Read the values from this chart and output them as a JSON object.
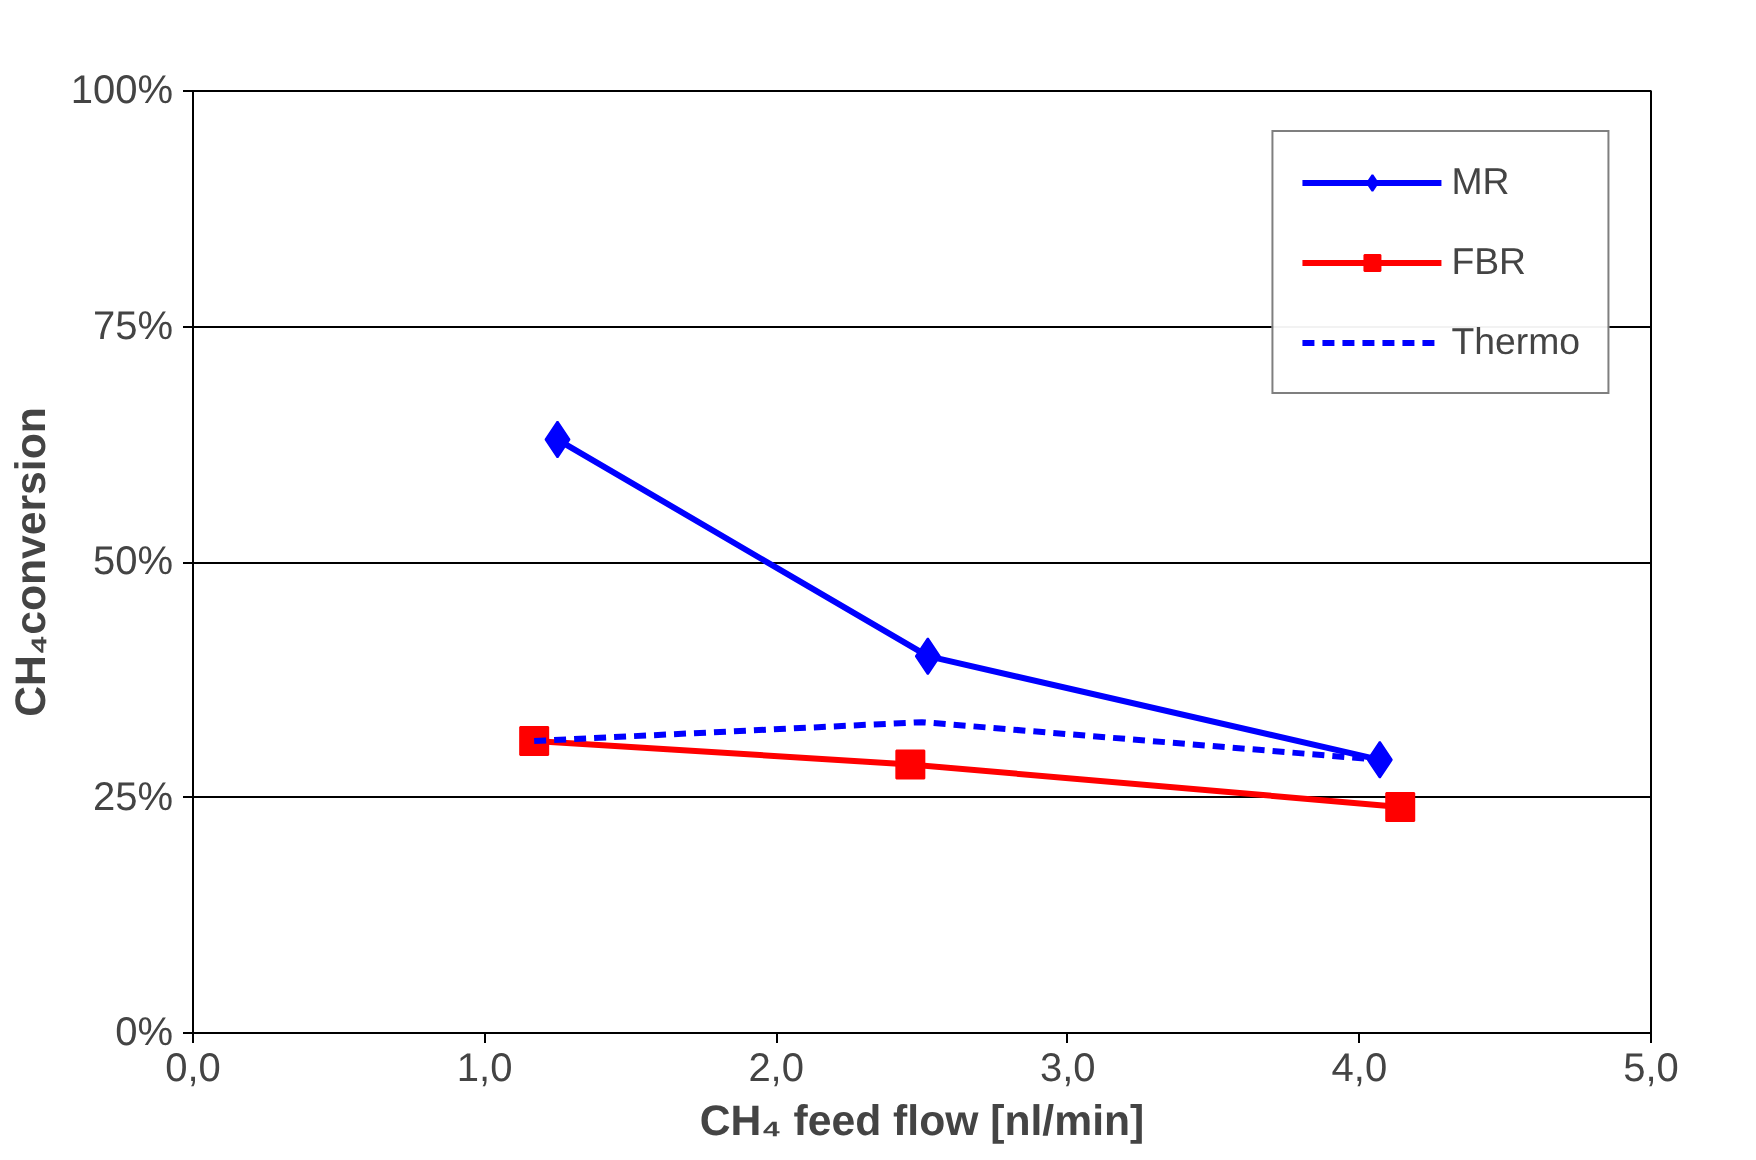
{
  "chart_data": {
    "type": "line",
    "xlabel": "CH₄ feed flow [nl/min]",
    "ylabel": "CH₄conversion",
    "xlim": [
      0,
      5
    ],
    "xticks": [
      {
        "value": 0,
        "label": "0,0"
      },
      {
        "value": 1,
        "label": "1,0"
      },
      {
        "value": 2,
        "label": "2,0"
      },
      {
        "value": 3,
        "label": "3,0"
      },
      {
        "value": 4,
        "label": "4,0"
      },
      {
        "value": 5,
        "label": "5,0"
      }
    ],
    "ylim": [
      0,
      100
    ],
    "yticks": [
      {
        "value": 0,
        "label": "0%"
      },
      {
        "value": 25,
        "label": "25%"
      },
      {
        "value": 50,
        "label": "50%"
      },
      {
        "value": 75,
        "label": "75%"
      },
      {
        "value": 100,
        "label": "100%"
      }
    ],
    "grid": "y",
    "legend": "top right",
    "series": [
      {
        "name": "MR",
        "color": "#0000ff",
        "x": [
          1.25,
          2.52,
          4.07
        ],
        "values": [
          63,
          40,
          29
        ],
        "marker": "diamond",
        "line_style": "solid"
      },
      {
        "name": "FBR",
        "color": "#ff0000",
        "x": [
          1.17,
          2.46,
          4.14
        ],
        "values": [
          31,
          28.5,
          24
        ],
        "marker": "square",
        "line_style": "solid"
      },
      {
        "name": "Thermo",
        "color": "#0000ff",
        "x": [
          1.17,
          2.5,
          4.07
        ],
        "values": [
          31,
          33,
          29
        ],
        "marker": "none",
        "line_style": "dashed"
      }
    ]
  }
}
